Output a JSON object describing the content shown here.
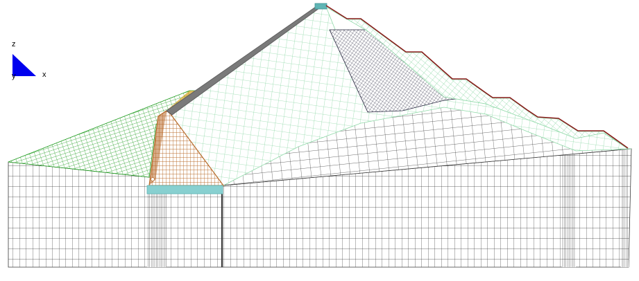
{
  "axes": {
    "z_label": "z",
    "x_label": "x",
    "y_label": "y"
  },
  "colors": {
    "background": "#ffffff",
    "foundation_mesh": "#3a3a3a",
    "downstream_shell_mesh": "#22223a",
    "core_mesh": "#8fd9a8",
    "upstream_berm_mesh": "#1a9a1a",
    "filter_zone": "#b86a2a",
    "facing_slab": "#7a7a7a",
    "cutoff_wall": "#88d0d0",
    "crest_parapet": "#5fb5b5",
    "outline": "#8b1a1a",
    "axis_triad": "#0000ee"
  }
}
